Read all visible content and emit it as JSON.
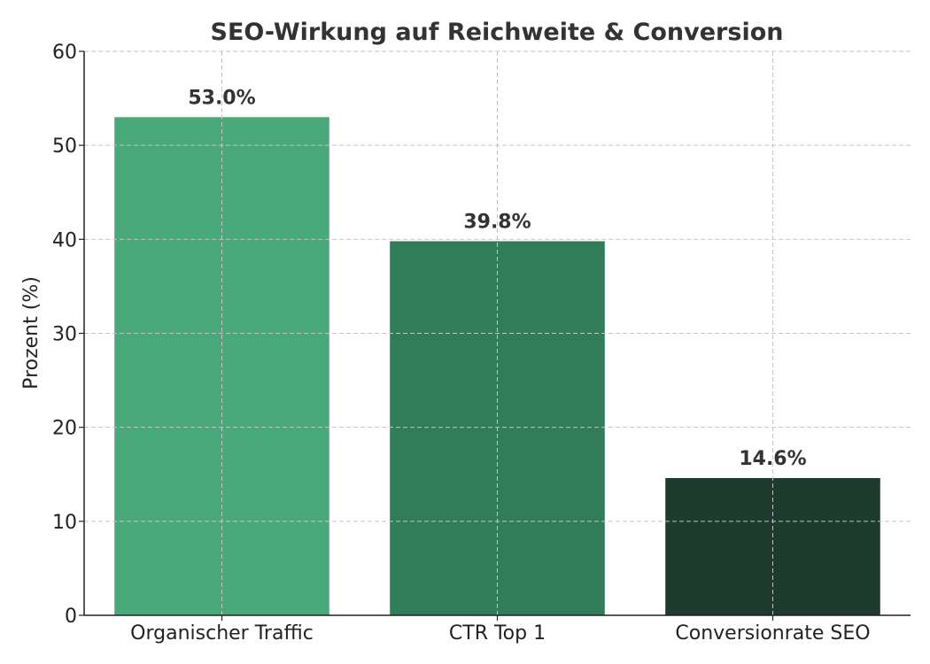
{
  "chart_data": {
    "type": "bar",
    "title": "SEO-Wirkung auf Reichweite & Conversion",
    "xlabel": "",
    "ylabel": "Prozent (%)",
    "ylim": [
      0,
      60
    ],
    "yticks": [
      0,
      10,
      20,
      30,
      40,
      50,
      60
    ],
    "grid": true,
    "categories": [
      "Organischer Traffic",
      "CTR Top 1",
      "Conversionrate SEO"
    ],
    "values": [
      53.0,
      39.8,
      14.6
    ],
    "data_labels": [
      "53.0%",
      "39.8%",
      "14.6%"
    ],
    "colors": [
      "#4aa97a",
      "#327d59",
      "#1d3b2f"
    ]
  }
}
